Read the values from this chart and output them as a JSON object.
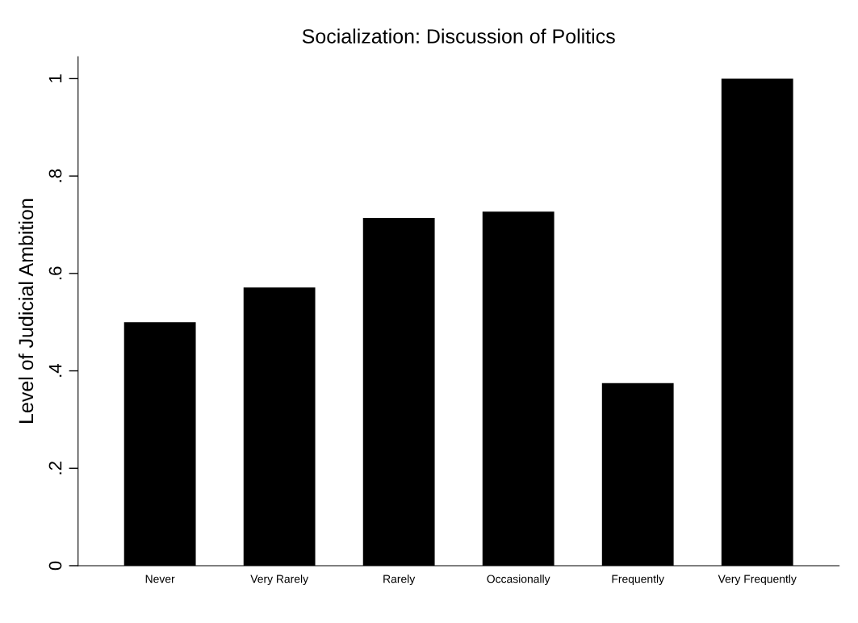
{
  "chart_data": {
    "type": "bar",
    "title": "Socialization: Discussion of Politics",
    "ylabel": "Level of Judicial Ambition",
    "categories": [
      "Never",
      "Very Rarely",
      "Rarely",
      "Occasionally",
      "Frequently",
      "Very Frequently"
    ],
    "values": [
      0.5,
      0.571,
      0.714,
      0.727,
      0.375,
      1.0
    ],
    "color": "#000000",
    "ylim": [
      0,
      1.045
    ],
    "yticks": [
      {
        "value": 0,
        "label": "0"
      },
      {
        "value": 0.2,
        "label": ".2"
      },
      {
        "value": 0.4,
        "label": ".4"
      },
      {
        "value": 0.6,
        "label": ".6"
      },
      {
        "value": 0.8,
        "label": ".8"
      },
      {
        "value": 1,
        "label": "1"
      }
    ],
    "grid": false
  }
}
